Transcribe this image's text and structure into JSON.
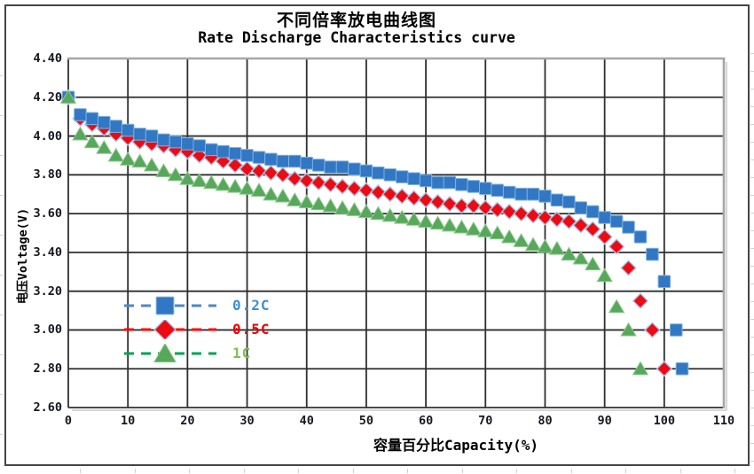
{
  "chart_data": {
    "type": "scatter",
    "title": "不同倍率放电曲线图",
    "subtitle": "Rate Discharge Characteristics curve",
    "xlabel": "容量百分比Capacity(%)",
    "ylabel": "电压Voltage(V)",
    "xlim": [
      0,
      110
    ],
    "ylim": [
      2.6,
      4.4
    ],
    "grid": true,
    "grid_color": "#2f2f2f",
    "plot_border_color": "#a6a6a6",
    "plot_shadow_color": "#c9c9c9",
    "legend_position": "inside-left-middle",
    "x_ticks": [
      0,
      10,
      20,
      30,
      40,
      50,
      60,
      70,
      80,
      90,
      100,
      110
    ],
    "x_tick_labels": [
      "0",
      "10",
      "20",
      "30",
      "40",
      "50",
      "60",
      "70",
      "80",
      "90",
      "100",
      "110"
    ],
    "y_ticks": [
      4.4,
      4.2,
      4.0,
      3.8,
      3.6,
      3.4,
      3.2,
      3.0,
      2.8,
      2.6
    ],
    "y_tick_labels": [
      "4.40",
      "4.20",
      "4.00",
      "3.80",
      "3.60",
      "3.40",
      "3.20",
      "3.00",
      "2.80",
      "2.60"
    ],
    "series": [
      {
        "name": "0.2C",
        "marker": "square",
        "z": 2,
        "color": "#3277c3",
        "edge_color": "#7fb2e2",
        "line_color": "#4d87c7",
        "label_color": "#3f8fd2",
        "points": [
          [
            0,
            4.2
          ],
          [
            2,
            4.11
          ],
          [
            4,
            4.09
          ],
          [
            6,
            4.07
          ],
          [
            8,
            4.05
          ],
          [
            10,
            4.03
          ],
          [
            12,
            4.01
          ],
          [
            14,
            4.0
          ],
          [
            16,
            3.98
          ],
          [
            18,
            3.97
          ],
          [
            20,
            3.96
          ],
          [
            22,
            3.95
          ],
          [
            24,
            3.93
          ],
          [
            26,
            3.92
          ],
          [
            28,
            3.91
          ],
          [
            30,
            3.9
          ],
          [
            32,
            3.89
          ],
          [
            34,
            3.88
          ],
          [
            36,
            3.87
          ],
          [
            38,
            3.87
          ],
          [
            40,
            3.86
          ],
          [
            42,
            3.85
          ],
          [
            44,
            3.84
          ],
          [
            46,
            3.84
          ],
          [
            48,
            3.83
          ],
          [
            50,
            3.82
          ],
          [
            52,
            3.81
          ],
          [
            54,
            3.8
          ],
          [
            56,
            3.79
          ],
          [
            58,
            3.78
          ],
          [
            60,
            3.77
          ],
          [
            62,
            3.76
          ],
          [
            64,
            3.76
          ],
          [
            66,
            3.75
          ],
          [
            68,
            3.74
          ],
          [
            70,
            3.73
          ],
          [
            72,
            3.72
          ],
          [
            74,
            3.71
          ],
          [
            76,
            3.7
          ],
          [
            78,
            3.7
          ],
          [
            80,
            3.69
          ],
          [
            82,
            3.67
          ],
          [
            84,
            3.66
          ],
          [
            86,
            3.63
          ],
          [
            88,
            3.61
          ],
          [
            90,
            3.58
          ],
          [
            92,
            3.56
          ],
          [
            94,
            3.53
          ],
          [
            96,
            3.48
          ],
          [
            98,
            3.39
          ],
          [
            100,
            3.25
          ],
          [
            102,
            3.0
          ],
          [
            103,
            2.8
          ]
        ]
      },
      {
        "name": "0.5C",
        "marker": "diamond",
        "z": 1,
        "color": "#ee0a12",
        "edge_color": "#a6c6e8",
        "line_color": "#ff0000",
        "label_color": "#f00000",
        "points": [
          [
            0,
            4.2
          ],
          [
            2,
            4.09
          ],
          [
            4,
            4.06
          ],
          [
            6,
            4.04
          ],
          [
            8,
            4.01
          ],
          [
            10,
            3.99
          ],
          [
            12,
            3.97
          ],
          [
            14,
            3.96
          ],
          [
            16,
            3.95
          ],
          [
            18,
            3.93
          ],
          [
            20,
            3.92
          ],
          [
            22,
            3.9
          ],
          [
            24,
            3.89
          ],
          [
            26,
            3.87
          ],
          [
            28,
            3.85
          ],
          [
            30,
            3.83
          ],
          [
            32,
            3.82
          ],
          [
            34,
            3.81
          ],
          [
            36,
            3.8
          ],
          [
            38,
            3.78
          ],
          [
            40,
            3.77
          ],
          [
            42,
            3.76
          ],
          [
            44,
            3.75
          ],
          [
            46,
            3.74
          ],
          [
            48,
            3.73
          ],
          [
            50,
            3.72
          ],
          [
            52,
            3.71
          ],
          [
            54,
            3.7
          ],
          [
            56,
            3.69
          ],
          [
            58,
            3.68
          ],
          [
            60,
            3.67
          ],
          [
            62,
            3.66
          ],
          [
            64,
            3.65
          ],
          [
            66,
            3.64
          ],
          [
            68,
            3.64
          ],
          [
            70,
            3.63
          ],
          [
            72,
            3.62
          ],
          [
            74,
            3.61
          ],
          [
            76,
            3.6
          ],
          [
            78,
            3.59
          ],
          [
            80,
            3.58
          ],
          [
            82,
            3.57
          ],
          [
            84,
            3.56
          ],
          [
            86,
            3.54
          ],
          [
            88,
            3.52
          ],
          [
            90,
            3.48
          ],
          [
            92,
            3.43
          ],
          [
            94,
            3.32
          ],
          [
            96,
            3.15
          ],
          [
            98,
            3.0
          ],
          [
            100,
            2.8
          ]
        ]
      },
      {
        "name": "1C",
        "marker": "triangle",
        "z": 3,
        "color": "#56a85a",
        "edge_color": "#90c890",
        "line_color": "#00a550",
        "label_color": "#7fbf54",
        "points": [
          [
            0,
            4.2
          ],
          [
            2,
            4.01
          ],
          [
            4,
            3.97
          ],
          [
            6,
            3.94
          ],
          [
            8,
            3.9
          ],
          [
            10,
            3.88
          ],
          [
            12,
            3.87
          ],
          [
            14,
            3.85
          ],
          [
            16,
            3.82
          ],
          [
            18,
            3.8
          ],
          [
            20,
            3.78
          ],
          [
            22,
            3.77
          ],
          [
            24,
            3.76
          ],
          [
            26,
            3.75
          ],
          [
            28,
            3.74
          ],
          [
            30,
            3.73
          ],
          [
            32,
            3.72
          ],
          [
            34,
            3.7
          ],
          [
            36,
            3.69
          ],
          [
            38,
            3.67
          ],
          [
            40,
            3.66
          ],
          [
            42,
            3.65
          ],
          [
            44,
            3.64
          ],
          [
            46,
            3.63
          ],
          [
            48,
            3.62
          ],
          [
            50,
            3.61
          ],
          [
            52,
            3.6
          ],
          [
            54,
            3.59
          ],
          [
            56,
            3.58
          ],
          [
            58,
            3.57
          ],
          [
            60,
            3.56
          ],
          [
            62,
            3.55
          ],
          [
            64,
            3.54
          ],
          [
            66,
            3.53
          ],
          [
            68,
            3.52
          ],
          [
            70,
            3.51
          ],
          [
            72,
            3.5
          ],
          [
            74,
            3.48
          ],
          [
            76,
            3.46
          ],
          [
            78,
            3.44
          ],
          [
            80,
            3.43
          ],
          [
            82,
            3.42
          ],
          [
            84,
            3.39
          ],
          [
            86,
            3.37
          ],
          [
            88,
            3.34
          ],
          [
            90,
            3.28
          ],
          [
            92,
            3.12
          ],
          [
            94,
            3.0
          ],
          [
            96,
            2.8
          ]
        ]
      }
    ]
  }
}
